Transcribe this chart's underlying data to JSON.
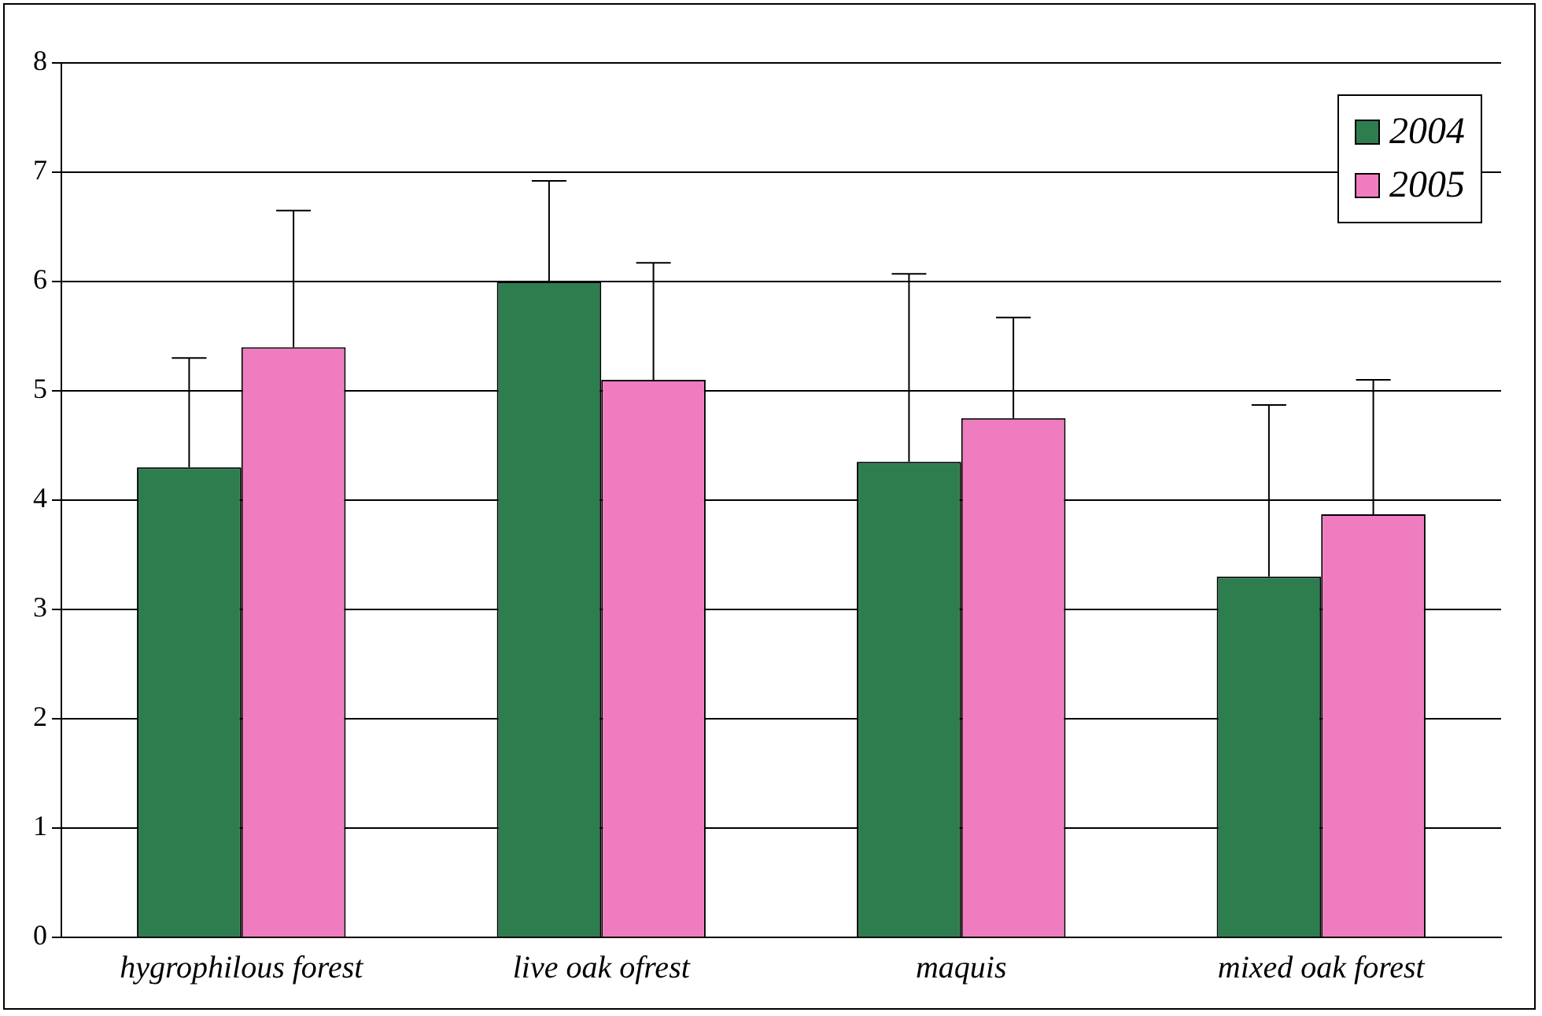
{
  "chart_data": {
    "type": "bar",
    "categories": [
      "hygrophilous forest",
      "live oak ofrest",
      "maquis",
      "mixed oak forest"
    ],
    "series": [
      {
        "name": "2004",
        "color": "#2e7d4f",
        "values": [
          4.3,
          6.0,
          4.35,
          3.3
        ],
        "errors": [
          [
            4.3,
            5.3
          ],
          [
            6.0,
            6.92
          ],
          [
            4.35,
            6.07
          ],
          [
            3.3,
            4.87
          ]
        ]
      },
      {
        "name": "2005",
        "color": "#f07cc0",
        "values": [
          5.4,
          5.1,
          4.75,
          3.87
        ],
        "errors": [
          [
            5.4,
            6.65
          ],
          [
            5.1,
            6.17
          ],
          [
            4.75,
            5.67
          ],
          [
            3.87,
            5.1
          ]
        ]
      }
    ],
    "ylim": [
      0,
      8
    ],
    "yticks": [
      0,
      1,
      2,
      3,
      4,
      5,
      6,
      7,
      8
    ],
    "grid": "y",
    "legend": "top right"
  }
}
